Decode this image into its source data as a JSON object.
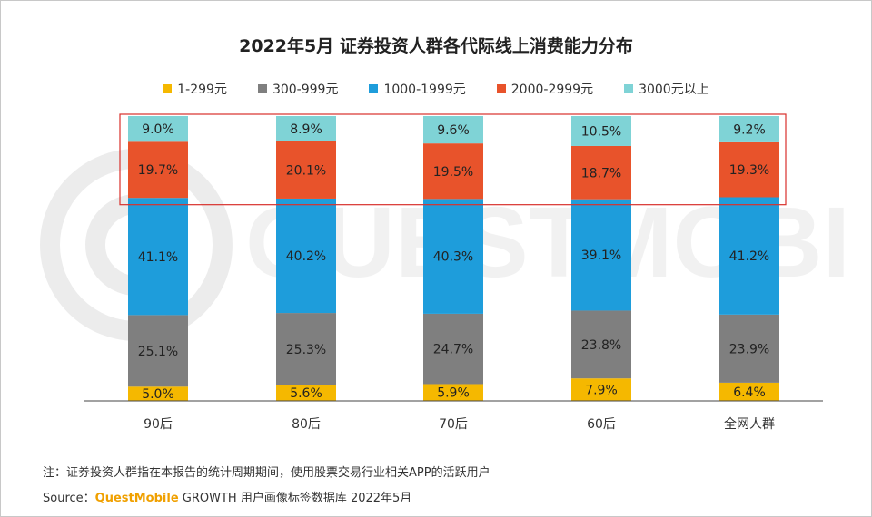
{
  "chart_data": {
    "type": "bar",
    "stacked": true,
    "title": "2022年5月 证券投资人群各代际线上消费能力分布",
    "categories": [
      "90后",
      "80后",
      "70后",
      "60后",
      "全网人群"
    ],
    "series": [
      {
        "name": "1-299元",
        "color": "#f5b800",
        "values": [
          5.0,
          5.6,
          5.9,
          7.9,
          6.4
        ]
      },
      {
        "name": "300-999元",
        "color": "#7f7f7f",
        "values": [
          25.1,
          25.3,
          24.7,
          23.8,
          23.9
        ]
      },
      {
        "name": "1000-1999元",
        "color": "#1e9ddb",
        "values": [
          41.1,
          40.2,
          40.3,
          39.1,
          41.2
        ]
      },
      {
        "name": "2000-2999元",
        "color": "#e8532b",
        "values": [
          19.7,
          20.1,
          19.5,
          18.7,
          19.3
        ]
      },
      {
        "name": "3000元以上",
        "color": "#7fd3d6",
        "values": [
          9.0,
          8.9,
          9.6,
          10.5,
          9.2
        ]
      }
    ],
    "value_format": "%",
    "legend_position": "top",
    "highlight": {
      "series": [
        "2000-2999元",
        "3000元以上"
      ],
      "border_color": "#d9302b"
    }
  },
  "watermark": "QUESTMOBILE",
  "note": "注：证券投资人群指在本报告的统计周期期间，使用股票交易行业相关APP的活跃用户",
  "source": {
    "label": "Source：",
    "brand": "QuestMobile",
    "text": " GROWTH 用户画像标签数据库 2022年5月"
  }
}
